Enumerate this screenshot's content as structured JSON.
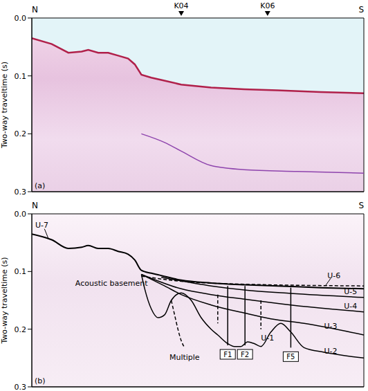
{
  "chart_data": [
    {
      "type": "line",
      "title": "(a)",
      "y_label": "Two-way traveltime (s)",
      "end_labels": [
        "N",
        "S"
      ],
      "xlim": [
        0,
        100
      ],
      "ylim": [
        0,
        0.3
      ],
      "yticks": [
        {
          "value": 0,
          "label": "0.0"
        },
        0.1,
        0.2,
        0.3
      ],
      "tick_labels": "y",
      "grid": false,
      "markers": [
        {
          "x": 45,
          "label": "K04"
        },
        {
          "x": 71,
          "label": "K06"
        }
      ],
      "series": [
        {
          "type": "area",
          "color": "#b0204a",
          "x": [
            0,
            6,
            11,
            15,
            17,
            20,
            23,
            26,
            29,
            31,
            33,
            36,
            39,
            45,
            54,
            64,
            74,
            87,
            100
          ],
          "values": [
            0.035,
            0.045,
            0.06,
            0.058,
            0.055,
            0.06,
            0.06,
            0.065,
            0.07,
            0.08,
            0.098,
            0.103,
            0.107,
            0.115,
            0.12,
            0.123,
            0.125,
            0.128,
            0.13
          ]
        },
        {
          "type": "line",
          "color": "#8e44ad",
          "x": [
            33,
            40,
            45,
            54,
            64,
            80,
            100
          ],
          "values": [
            0.2,
            0.215,
            0.23,
            0.255,
            0.262,
            0.265,
            0.268
          ]
        }
      ],
      "annotations": []
    },
    {
      "type": "line",
      "title": "(b)",
      "y_label": "Two-way traveltime (s)",
      "end_labels": [
        "N",
        "S"
      ],
      "xlim": [
        0,
        100
      ],
      "ylim": [
        0,
        0.3
      ],
      "yticks": [
        {
          "value": 0,
          "label": "0.0"
        },
        0.1,
        0.2,
        0.3
      ],
      "tick_labels": "y",
      "grid": false,
      "markers": [],
      "series": [
        {
          "type": "line",
          "color": "#000000",
          "line_style": "solid",
          "x": [
            0,
            6,
            11,
            15,
            17,
            20,
            23,
            26,
            29,
            31,
            33,
            36,
            39,
            45,
            54,
            64,
            74,
            87,
            100
          ],
          "values": [
            0.035,
            0.045,
            0.06,
            0.058,
            0.055,
            0.06,
            0.06,
            0.065,
            0.07,
            0.08,
            0.098,
            0.103,
            0.107,
            0.115,
            0.12,
            0.123,
            0.125,
            0.128,
            0.13
          ]
        },
        {
          "type": "line",
          "color": "#000000",
          "line_style": "solid",
          "x": [
            33,
            34,
            36,
            38,
            40,
            42,
            45,
            48,
            51,
            54,
            56,
            59,
            61,
            63,
            65,
            67,
            69,
            72,
            75,
            78,
            82,
            88,
            100
          ],
          "values": [
            0.105,
            0.13,
            0.165,
            0.18,
            0.175,
            0.15,
            0.137,
            0.15,
            0.18,
            0.2,
            0.21,
            0.225,
            0.23,
            0.23,
            0.222,
            0.225,
            0.23,
            0.205,
            0.19,
            0.205,
            0.232,
            0.24,
            0.25
          ]
        },
        {
          "type": "line",
          "color": "#000000",
          "line_style": "solid",
          "x": [
            33,
            40,
            45,
            54,
            64,
            72,
            82,
            100
          ],
          "values": [
            0.105,
            0.125,
            0.14,
            0.158,
            0.172,
            0.182,
            0.19,
            0.21
          ]
        },
        {
          "type": "line",
          "color": "#000000",
          "line_style": "solid",
          "x": [
            33,
            45,
            54,
            64,
            78,
            90,
            100
          ],
          "values": [
            0.105,
            0.13,
            0.14,
            0.148,
            0.158,
            0.165,
            0.17
          ]
        },
        {
          "type": "line",
          "color": "#000000",
          "line_style": "solid",
          "x": [
            39,
            54,
            64,
            78,
            100
          ],
          "values": [
            0.11,
            0.125,
            0.132,
            0.138,
            0.145
          ]
        },
        {
          "type": "line",
          "color": "#000000",
          "line_style": "dashed",
          "x": [
            33,
            45,
            64,
            82,
            100
          ],
          "values": [
            0.108,
            0.117,
            0.122,
            0.124,
            0.125
          ]
        },
        {
          "type": "fault",
          "name": "F1",
          "color": "#000000",
          "line_style": "solid",
          "x": [
            59,
            59
          ],
          "values": [
            0.125,
            0.228
          ]
        },
        {
          "type": "fault",
          "name": "F2",
          "color": "#000000",
          "line_style": "solid",
          "x": [
            64.2,
            64.2
          ],
          "values": [
            0.125,
            0.228
          ]
        },
        {
          "type": "fault",
          "name": "F5",
          "color": "#000000",
          "line_style": "solid",
          "x": [
            78,
            78
          ],
          "values": [
            0.128,
            0.232
          ]
        },
        {
          "type": "line",
          "color": "#000000",
          "line_style": "dashed",
          "x": [
            56,
            56
          ],
          "values": [
            0.14,
            0.19
          ]
        },
        {
          "type": "line",
          "color": "#000000",
          "line_style": "dashed",
          "x": [
            69,
            69
          ],
          "values": [
            0.15,
            0.2
          ]
        },
        {
          "type": "line",
          "name": "Multiple",
          "color": "#000000",
          "line_style": "dashed",
          "x": [
            42,
            43,
            44,
            45,
            46
          ],
          "values": [
            0.15,
            0.175,
            0.2,
            0.22,
            0.232
          ]
        }
      ],
      "annotations": [
        {
          "text": "Acoustic basement",
          "x": 24,
          "y": 0.12
        },
        {
          "text": "U-7",
          "x": 3,
          "y": 0.02,
          "arrow": [
            3.8,
            0.026,
            5,
            0.043
          ]
        },
        {
          "text": "U-6",
          "x": 91,
          "y": 0.107,
          "arrow": [
            90,
            0.112,
            88.5,
            0.124
          ]
        },
        {
          "text": "U-5",
          "x": 96,
          "y": 0.135
        },
        {
          "text": "U-4",
          "x": 96,
          "y": 0.16
        },
        {
          "text": "U-3",
          "x": 90,
          "y": 0.195
        },
        {
          "text": "U-2",
          "x": 90,
          "y": 0.238
        },
        {
          "text": "U-1",
          "x": 71,
          "y": 0.215
        }
      ]
    }
  ]
}
